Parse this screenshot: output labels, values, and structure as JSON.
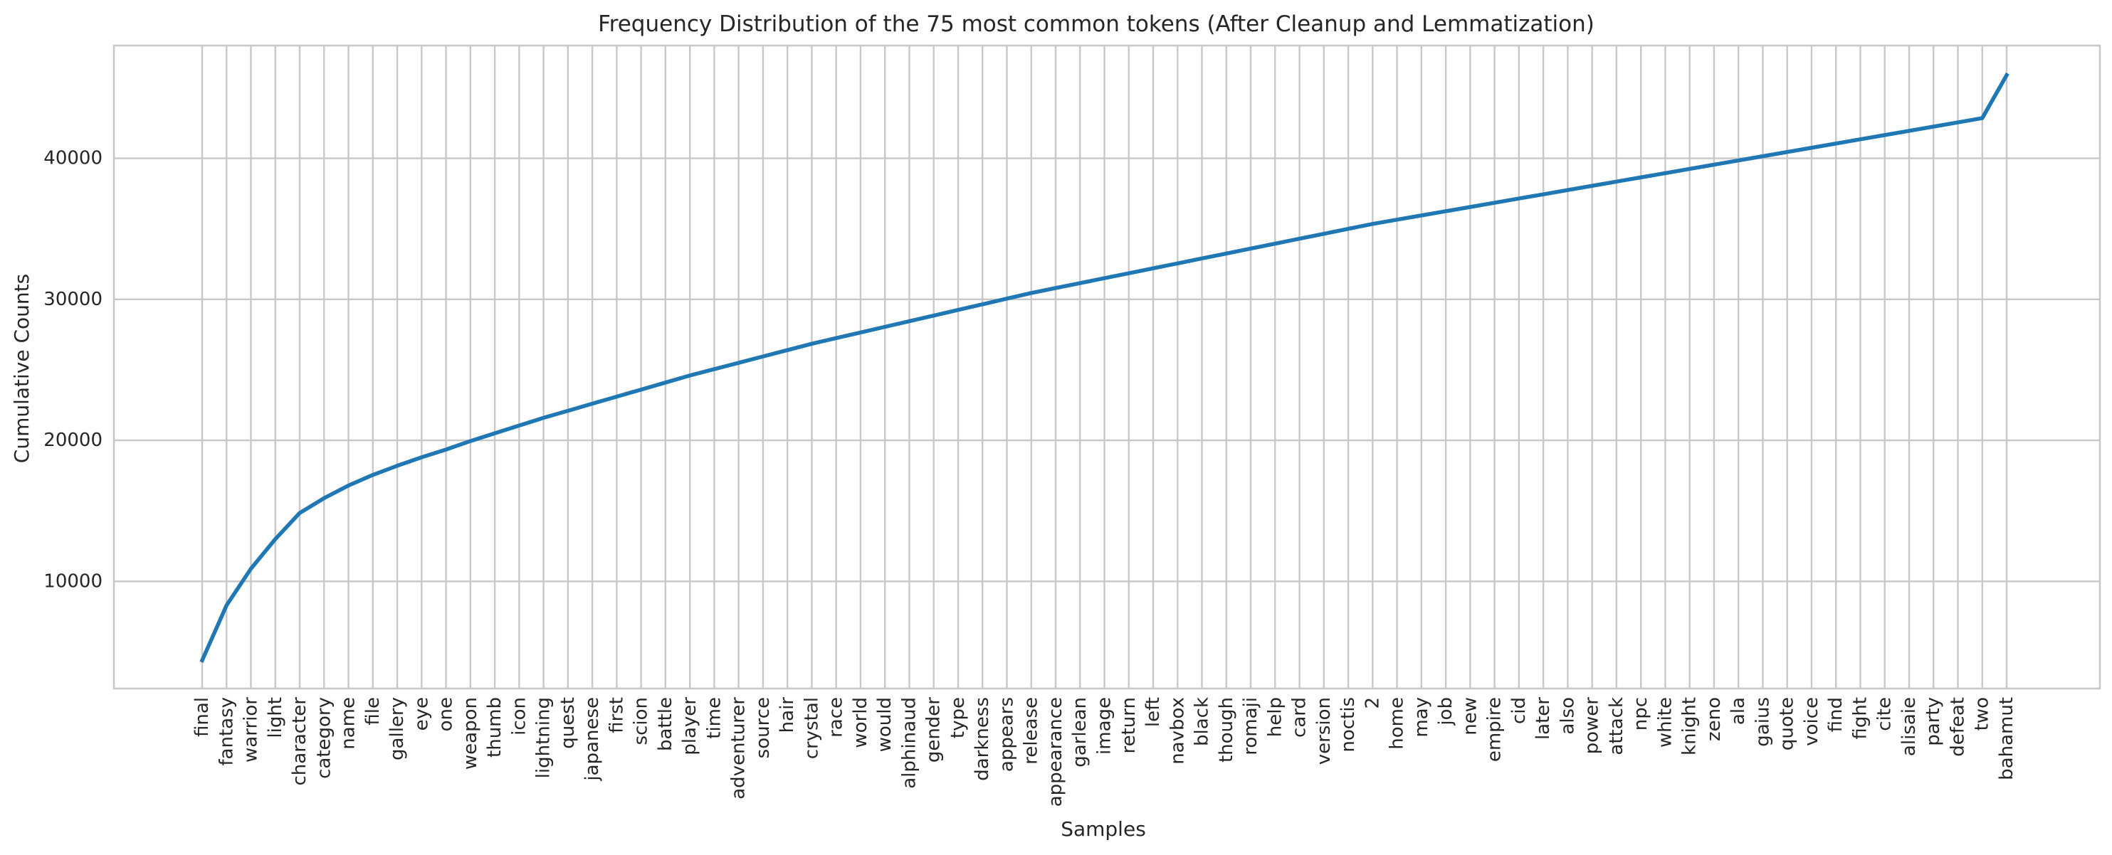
{
  "chart_data": {
    "type": "line",
    "title": "Frequency  Distribution of the 75 most common tokens (After Cleanup and Lemmatization)",
    "xlabel": "Samples",
    "ylabel": "Cumulative Counts",
    "yticks": [
      10000,
      20000,
      30000,
      40000
    ],
    "ylim": [
      2400,
      48000
    ],
    "grid": true,
    "categories": [
      "final",
      "fantasy",
      "warrior",
      "light",
      "character",
      "category",
      "name",
      "file",
      "gallery",
      "eye",
      "one",
      "weapon",
      "thumb",
      "icon",
      "lightning",
      "quest",
      "japanese",
      "first",
      "scion",
      "battle",
      "player",
      "time",
      "adventurer",
      "source",
      "hair",
      "crystal",
      "race",
      "world",
      "would",
      "alphinaud",
      "gender",
      "type",
      "darkness",
      "appears",
      "release",
      "appearance",
      "garlean",
      "image",
      "return",
      "left",
      "navbox",
      "black",
      "though",
      "romaji",
      "help",
      "card",
      "version",
      "noctis",
      "2",
      "home",
      "may",
      "job",
      "new",
      "empire",
      "cid",
      "later",
      "also",
      "power",
      "attack",
      "npc",
      "white",
      "knight",
      "zeno",
      "ala",
      "gaius",
      "quote",
      "voice",
      "find",
      "fight",
      "cite",
      "alisaie",
      "party",
      "defeat",
      "two",
      "bahamut"
    ],
    "series": [
      {
        "values": [
          4400,
          8300,
          10900,
          13000,
          14850,
          15900,
          16800,
          17550,
          18200,
          18800,
          19350,
          19950,
          20500,
          21050,
          21600,
          22100,
          22600,
          23100,
          23600,
          24100,
          24600,
          25050,
          25500,
          25950,
          26400,
          26850,
          27250,
          27650,
          28050,
          28450,
          28850,
          29250,
          29650,
          30050,
          30450,
          30800,
          31150,
          31500,
          31850,
          32200,
          32550,
          32900,
          33250,
          33600,
          33950,
          34300,
          34650,
          35000,
          35350,
          35650,
          35950,
          36250,
          36550,
          36850,
          37150,
          37450,
          37750,
          38050,
          38350,
          38650,
          38950,
          39250,
          39550,
          39850,
          40150,
          40450,
          40750,
          41050,
          41350,
          41650,
          41950,
          42250,
          42550,
          42850,
          45900
        ],
        "color": "#1f77b4"
      }
    ]
  }
}
